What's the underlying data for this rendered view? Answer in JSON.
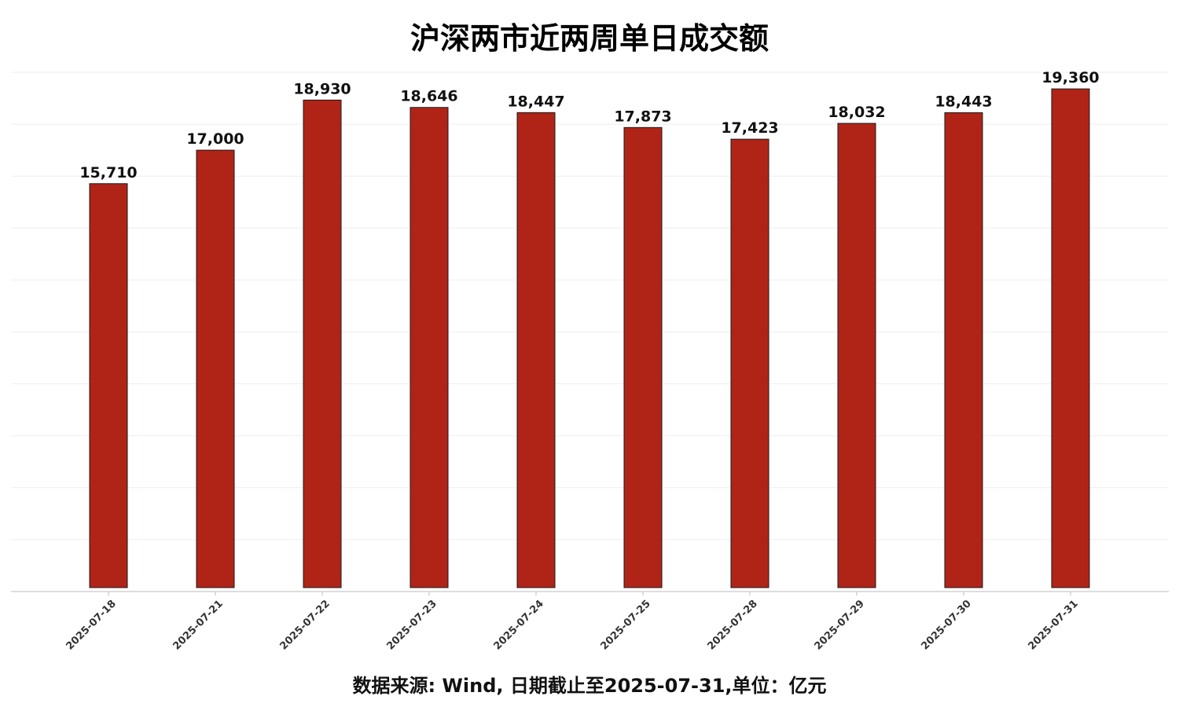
{
  "title": "沪深两市近两周单日成交额",
  "footnote": "数据来源: Wind, 日期截止至2025-07-31,单位：亿元",
  "colors": {
    "bar_fill": "#b02418",
    "bar_stroke": "#1a1a1a",
    "grid": "#eeeeee",
    "axis": "#bbbbbb"
  },
  "chart_data": {
    "type": "bar",
    "title": "沪深两市近两周单日成交额",
    "xlabel": "",
    "ylabel": "",
    "categories": [
      "2025-07-18",
      "2025-07-21",
      "2025-07-22",
      "2025-07-23",
      "2025-07-24",
      "2025-07-25",
      "2025-07-28",
      "2025-07-29",
      "2025-07-30",
      "2025-07-31"
    ],
    "values": [
      15710,
      17000,
      18930,
      18646,
      18447,
      17873,
      17423,
      18032,
      18443,
      19360
    ],
    "value_labels": [
      "15,710",
      "17,000",
      "18,930",
      "18,646",
      "18,447",
      "17,873",
      "17,423",
      "18,032",
      "18,443",
      "19,360"
    ],
    "ylim": [
      0,
      20000
    ],
    "y_axis_visible": false,
    "grid": true,
    "legend": "none"
  }
}
